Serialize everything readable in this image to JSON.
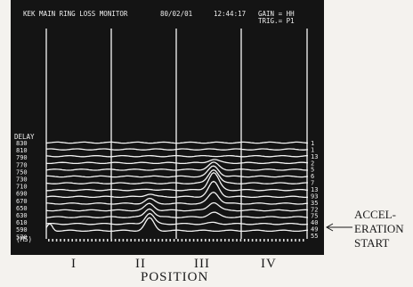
{
  "screen": {
    "title": "KEK MAIN RING LOSS MONITOR",
    "date": "80/02/01",
    "time": "12:44:17",
    "gain": "GAIN = HH",
    "trig": "TRIG.= P1",
    "delay_title": "DELAY",
    "unit": "(MS)"
  },
  "chart_data": {
    "type": "line",
    "delay_labels": [
      "830",
      "810",
      "790",
      "770",
      "750",
      "730",
      "710",
      "690",
      "670",
      "650",
      "630",
      "610",
      "590",
      "570"
    ],
    "right_labels": [
      "1",
      "1",
      "13",
      "2",
      "5",
      "6",
      "7",
      "13",
      "93",
      "35",
      "72",
      "75",
      "40",
      "49",
      "55"
    ],
    "regions": [
      "I",
      "II",
      "III",
      "IV"
    ],
    "xlabel": "POSITION",
    "annotation": [
      "ACCEL-",
      "ERATION",
      "START"
    ]
  }
}
